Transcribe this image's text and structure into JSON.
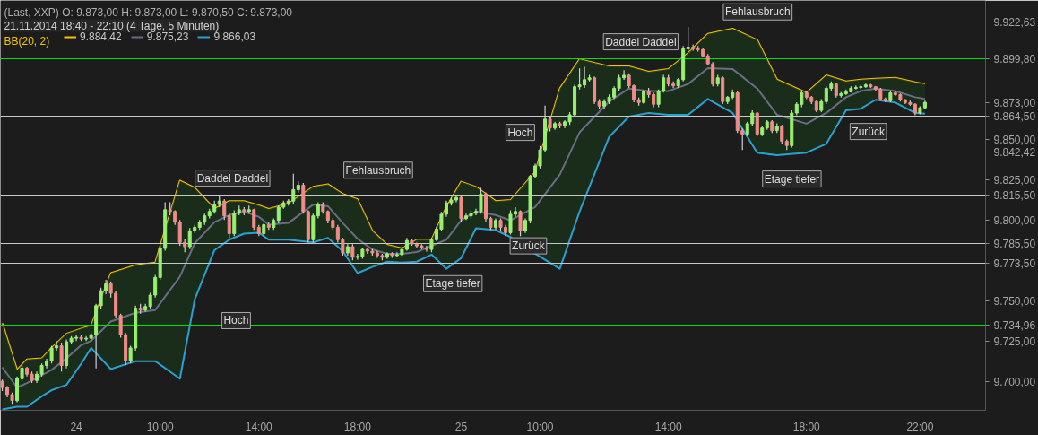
{
  "chart_data": {
    "type": "candlestick",
    "title": "(Last, XXP)  O: 9.873,00  H: 9.873,00  L: 9.870,50  C: 9.873,00",
    "subtitle": "21.11.2014 18:40 - 22:10 (4 Tage, 5 Minuten)",
    "legend_title": "BB(20, 2)",
    "legend": "top left",
    "grid": false,
    "categories": [
      null,
      null,
      null,
      null,
      null,
      null,
      null,
      null,
      null,
      null,
      null,
      null,
      null,
      null,
      null,
      "24",
      null,
      null,
      null,
      null,
      null,
      null,
      null,
      null,
      null,
      null,
      null,
      null,
      null,
      null,
      null,
      null,
      "10:00",
      null,
      null,
      null,
      null,
      null,
      null,
      null,
      null,
      null,
      null,
      null,
      null,
      null,
      null,
      null,
      null,
      null,
      null,
      null,
      "14:00",
      null,
      null,
      null,
      null,
      null,
      null,
      null,
      null,
      null,
      null,
      null,
      null,
      null,
      null,
      null,
      null,
      null,
      null,
      null,
      "18:00",
      null,
      null,
      null,
      null,
      null,
      null,
      null,
      null,
      null,
      null,
      null,
      null,
      null,
      null,
      null,
      null,
      null,
      null,
      null,
      null,
      "25",
      null,
      null,
      null,
      null,
      null,
      null,
      null,
      null,
      null,
      null,
      null,
      null,
      null,
      null,
      null,
      "10:00",
      null,
      null,
      null,
      null,
      null,
      null,
      null,
      null,
      null,
      null,
      null,
      null,
      null,
      null,
      null,
      null,
      null,
      null,
      null,
      null,
      null,
      null,
      null,
      null,
      null,
      "14:00",
      null,
      null,
      null,
      null,
      null,
      null,
      null,
      null,
      null,
      null,
      null,
      null,
      null,
      null,
      null,
      null,
      null,
      null,
      null,
      null,
      null,
      null,
      null,
      null,
      null,
      null,
      null,
      "18:00",
      null,
      null,
      null,
      null,
      null,
      null,
      null,
      null,
      null,
      null,
      null,
      null,
      null,
      null,
      null,
      null,
      null,
      null,
      null,
      null,
      null,
      null,
      "22:00",
      null
    ],
    "ylim": [
      9682,
      9936.2
    ],
    "yticks": [
      {
        "value": 9700,
        "label": "9.700,00"
      },
      {
        "value": 9725,
        "label": "9.725,00"
      },
      {
        "value": 9750,
        "label": "9.750,00"
      },
      {
        "value": 9800,
        "label": "9.800,00"
      },
      {
        "value": 9825,
        "label": "9.825,00"
      },
      {
        "value": 9850,
        "label": "9.850,00"
      },
      {
        "value": 9873,
        "label": "9.873,00"
      }
    ],
    "ohlc": [
      [
        9700,
        9701,
        9694,
        9696.2
      ],
      [
        9696.2,
        9697,
        9690,
        9691.8
      ],
      [
        9691.8,
        9693,
        9686,
        9688
      ],
      [
        9688,
        9703,
        9687,
        9701.6
      ],
      [
        9701.6,
        9710,
        9700,
        9708.2
      ],
      [
        9708.2,
        9709,
        9703,
        9704.4
      ],
      [
        9704.4,
        9706,
        9699,
        9700.5
      ],
      [
        9700.5,
        9706,
        9699,
        9704.4
      ],
      [
        9704.4,
        9711,
        9703,
        9709.8
      ],
      [
        9709.8,
        9714,
        9708,
        9712.6
      ],
      [
        9712.6,
        9722,
        9711,
        9720.7
      ],
      [
        9720.7,
        9725,
        9719,
        9722
      ],
      [
        9722,
        9724,
        9706,
        9709.8
      ],
      [
        9709.8,
        9726,
        9708,
        9724.5
      ],
      [
        9724.5,
        9728,
        9723,
        9726.7
      ],
      [
        9726.7,
        9729,
        9725,
        9727.3
      ],
      [
        9727.3,
        9728.5,
        9725,
        9726.2
      ],
      [
        9726.2,
        9728,
        9725,
        9726.7
      ],
      [
        9726.7,
        9730,
        9725,
        9728.9
      ],
      [
        9728.9,
        9748,
        9708,
        9746.9
      ],
      [
        9746.9,
        9758,
        9745,
        9756.2
      ],
      [
        9756.2,
        9763,
        9754,
        9760.5
      ],
      [
        9760.5,
        9762,
        9752,
        9754.6
      ],
      [
        9754.6,
        9756,
        9739,
        9740.9
      ],
      [
        9740.9,
        9742,
        9727,
        9728.9
      ],
      [
        9728.9,
        9730,
        9710,
        9712.6
      ],
      [
        9712.6,
        9722,
        9711,
        9720.7
      ],
      [
        9720.7,
        9747,
        9719,
        9745.3
      ],
      [
        9745.3,
        9748,
        9742,
        9744.2
      ],
      [
        9744.2,
        9748,
        9743,
        9746.4
      ],
      [
        9746.4,
        9755,
        9745,
        9753.5
      ],
      [
        9753.5,
        9766,
        9752,
        9764.4
      ],
      [
        9764.4,
        9784,
        9763,
        9782.4
      ],
      [
        9782.4,
        9811,
        9781,
        9806.4
      ],
      [
        9806.4,
        9811,
        9803,
        9805.3
      ],
      [
        9805.3,
        9806,
        9797,
        9798.7
      ],
      [
        9798.7,
        9800,
        9784,
        9786.2
      ],
      [
        9786.2,
        9788,
        9780,
        9783.5
      ],
      [
        9783.5,
        9795,
        9782,
        9793.3
      ],
      [
        9793.3,
        9797,
        9792,
        9795.5
      ],
      [
        9795.5,
        9800,
        9794,
        9798.7
      ],
      [
        9798.7,
        9804,
        9797,
        9802.6
      ],
      [
        9802.6,
        9807,
        9801,
        9805.3
      ],
      [
        9805.3,
        9812,
        9804,
        9809.6
      ],
      [
        9809.6,
        9815,
        9808,
        9811.8
      ],
      [
        9811.8,
        9813,
        9800,
        9802.6
      ],
      [
        9802.6,
        9804,
        9789,
        9791.6
      ],
      [
        9791.6,
        9806,
        9790,
        9804.2
      ],
      [
        9804.2,
        9809,
        9803,
        9806.4
      ],
      [
        9806.4,
        9808,
        9803,
        9805.3
      ],
      [
        9805.3,
        9809,
        9804,
        9806.4
      ],
      [
        9806.4,
        9807,
        9794,
        9795.5
      ],
      [
        9795.5,
        9797,
        9790,
        9791.6
      ],
      [
        9791.6,
        9798,
        9790,
        9797.1
      ],
      [
        9797.1,
        9799,
        9794,
        9795.5
      ],
      [
        9795.5,
        9801,
        9794,
        9799.8
      ],
      [
        9799.8,
        9809,
        9798,
        9808
      ],
      [
        9808,
        9812,
        9807,
        9810.7
      ],
      [
        9810.7,
        9813,
        9809,
        9811.8
      ],
      [
        9811.8,
        9828.7,
        9810,
        9818.9
      ],
      [
        9818.9,
        9824,
        9817,
        9821.6
      ],
      [
        9821.6,
        9823,
        9804,
        9805.3
      ],
      [
        9805.3,
        9806,
        9786,
        9787.8
      ],
      [
        9787.8,
        9804,
        9786,
        9802.6
      ],
      [
        9802.6,
        9811,
        9801,
        9809.6
      ],
      [
        9809.6,
        9811,
        9804,
        9805.3
      ],
      [
        9805.3,
        9806,
        9798,
        9799.8
      ],
      [
        9799.8,
        9801,
        9794,
        9795.5
      ],
      [
        9795.5,
        9797,
        9786,
        9787.8
      ],
      [
        9787.8,
        9789,
        9778,
        9779.6
      ],
      [
        9779.6,
        9785,
        9778,
        9783.5
      ],
      [
        9783.5,
        9785,
        9775,
        9776.9
      ],
      [
        9776.9,
        9779,
        9775.5,
        9777.5
      ],
      [
        9777.5,
        9783,
        9776,
        9781.8
      ],
      [
        9781.8,
        9783,
        9779,
        9780.7
      ],
      [
        9780.7,
        9782,
        9778,
        9779.6
      ],
      [
        9779.6,
        9781,
        9776.5,
        9778
      ],
      [
        9778,
        9779,
        9775,
        9776.9
      ],
      [
        9776.9,
        9780,
        9776,
        9779.1
      ],
      [
        9779.1,
        9780,
        9776.5,
        9778
      ],
      [
        9778,
        9780,
        9777,
        9778.5
      ],
      [
        9778.5,
        9783,
        9777.5,
        9781.8
      ],
      [
        9781.8,
        9789,
        9781,
        9787.3
      ],
      [
        9787.3,
        9788,
        9784,
        9785.1
      ],
      [
        9785.1,
        9786,
        9783,
        9784
      ],
      [
        9784,
        9785,
        9782,
        9782.9
      ],
      [
        9782.9,
        9784,
        9780.5,
        9781.8
      ],
      [
        9781.8,
        9789,
        9780,
        9787.8
      ],
      [
        9787.8,
        9796,
        9787,
        9794.4
      ],
      [
        9794.4,
        9805,
        9793,
        9803.6
      ],
      [
        9803.6,
        9812,
        9802,
        9810.7
      ],
      [
        9810.7,
        9814,
        9809,
        9812.4
      ],
      [
        9812.4,
        9815,
        9811,
        9814
      ],
      [
        9814,
        9815,
        9799,
        9800.9
      ],
      [
        9800.9,
        9804,
        9800,
        9802.6
      ],
      [
        9802.6,
        9806,
        9801,
        9804.2
      ],
      [
        9804.2,
        9807,
        9803,
        9805.3
      ],
      [
        9805.3,
        9820,
        9804,
        9816.2
      ],
      [
        9816.2,
        9817,
        9799,
        9800.9
      ],
      [
        9800.9,
        9802,
        9794,
        9795.5
      ],
      [
        9795.5,
        9801,
        9794,
        9799.8
      ],
      [
        9799.8,
        9801,
        9793,
        9795.5
      ],
      [
        9795.5,
        9797,
        9790,
        9792.2
      ],
      [
        9792.2,
        9806,
        9791,
        9803.6
      ],
      [
        9803.6,
        9808,
        9802,
        9805.3
      ],
      [
        9805.3,
        9806,
        9790,
        9793.3
      ],
      [
        9793.3,
        9801,
        9792,
        9799.8
      ],
      [
        9799.8,
        9828,
        9798,
        9827.1
      ],
      [
        9827.1,
        9835,
        9826,
        9833.6
      ],
      [
        9833.6,
        9846,
        9832,
        9843.5
      ],
      [
        9843.5,
        9871,
        9842,
        9862.6
      ],
      [
        9862.6,
        9864,
        9855,
        9857.1
      ],
      [
        9857.1,
        9861,
        9856,
        9859.8
      ],
      [
        9859.8,
        9861,
        9857,
        9858.7
      ],
      [
        9858.7,
        9862,
        9857,
        9860.9
      ],
      [
        9860.9,
        9867,
        9859,
        9865.3
      ],
      [
        9865.3,
        9884,
        9864,
        9882.7
      ],
      [
        9882.7,
        9894,
        9881,
        9883.8
      ],
      [
        9883.8,
        9895,
        9882,
        9887.1
      ],
      [
        9887.1,
        9890,
        9886,
        9888.2
      ],
      [
        9888.2,
        9889,
        9872,
        9873.5
      ],
      [
        9873.5,
        9875,
        9869,
        9870.7
      ],
      [
        9870.7,
        9875,
        9869,
        9873.5
      ],
      [
        9873.5,
        9878,
        9872,
        9876.2
      ],
      [
        9876.2,
        9883,
        9875,
        9881.7
      ],
      [
        9881.7,
        9890,
        9880,
        9888.2
      ],
      [
        9888.2,
        9893,
        9887,
        9889.8
      ],
      [
        9889.8,
        9891,
        9882,
        9883.3
      ],
      [
        9883.3,
        9884,
        9873,
        9874.6
      ],
      [
        9874.6,
        9876,
        9871,
        9872.9
      ],
      [
        9872.9,
        9881,
        9872,
        9880
      ],
      [
        9880,
        9882,
        9876,
        9877.8
      ],
      [
        9877.8,
        9879,
        9870,
        9871.8
      ],
      [
        9871.8,
        9881,
        9870,
        9880
      ],
      [
        9880,
        9890,
        9879,
        9888.2
      ],
      [
        9888.2,
        9890,
        9883,
        9884.4
      ],
      [
        9884.4,
        9886,
        9882,
        9883.3
      ],
      [
        9883.3,
        9888,
        9882,
        9887.1
      ],
      [
        9887.1,
        9908,
        9886,
        9906.2
      ],
      [
        9906.2,
        9919.8,
        9905,
        9907.3
      ],
      [
        9907.3,
        9909,
        9905,
        9906.2
      ],
      [
        9906.2,
        9908,
        9904.5,
        9905.7
      ],
      [
        9905.7,
        9907,
        9901,
        9901.8
      ],
      [
        9901.8,
        9903,
        9896,
        9896.9
      ],
      [
        9896.9,
        9898,
        9883,
        9884.4
      ],
      [
        9884.4,
        9890,
        9883,
        9888.2
      ],
      [
        9888.2,
        9889,
        9872,
        9873.5
      ],
      [
        9873.5,
        9877,
        9872,
        9876.2
      ],
      [
        9876.2,
        9881,
        9875,
        9878.9
      ],
      [
        9878.9,
        9880,
        9854,
        9855.5
      ],
      [
        9855.5,
        9857,
        9843.5,
        9853.3
      ],
      [
        9853.3,
        9861,
        9852,
        9859.8
      ],
      [
        9859.8,
        9868,
        9858,
        9866.4
      ],
      [
        9866.4,
        9867,
        9852,
        9853.3
      ],
      [
        9853.3,
        9858,
        9852,
        9857.1
      ],
      [
        9857.1,
        9862,
        9856,
        9860.9
      ],
      [
        9860.9,
        9862,
        9854,
        9855.5
      ],
      [
        9855.5,
        9860,
        9854,
        9858.2
      ],
      [
        9858.2,
        9859,
        9847,
        9848.9
      ],
      [
        9848.9,
        9850,
        9843.5,
        9846.2
      ],
      [
        9846.2,
        9868,
        9845,
        9866.4
      ],
      [
        9866.4,
        9873,
        9865,
        9871.8
      ],
      [
        9871.8,
        9880,
        9870,
        9878.9
      ],
      [
        9878.9,
        9880,
        9875,
        9876.2
      ],
      [
        9876.2,
        9877,
        9872,
        9873.5
      ],
      [
        9873.5,
        9874,
        9867,
        9868
      ],
      [
        9868,
        9875,
        9867,
        9873.5
      ],
      [
        9873.5,
        9883,
        9872,
        9881.7
      ],
      [
        9881.7,
        9886,
        9880,
        9884.4
      ],
      [
        9884.4,
        9885,
        9876,
        9877.3
      ],
      [
        9877.3,
        9879.5,
        9876,
        9878.4
      ],
      [
        9878.4,
        9881,
        9877.5,
        9879.5
      ],
      [
        9879.5,
        9883,
        9879,
        9881.7
      ],
      [
        9881.7,
        9883.5,
        9881,
        9882.2
      ],
      [
        9882.2,
        9884,
        9881,
        9882.7
      ],
      [
        9882.7,
        9885,
        9882,
        9883.8
      ],
      [
        9883.8,
        9884.5,
        9882,
        9882.7
      ],
      [
        9882.7,
        9883,
        9880,
        9881.1
      ],
      [
        9881.1,
        9882,
        9874,
        9875.1
      ],
      [
        9875.1,
        9876,
        9873,
        9874
      ],
      [
        9874,
        9880,
        9873,
        9878.9
      ],
      [
        9878.9,
        9880,
        9877,
        9877.8
      ],
      [
        9877.8,
        9878.5,
        9873.5,
        9874.6
      ],
      [
        9874.6,
        9875,
        9872,
        9872.9
      ],
      [
        9872.9,
        9874,
        9871,
        9871.8
      ],
      [
        9871.8,
        9872.5,
        9865,
        9866.4
      ],
      [
        9866.4,
        9870.5,
        9865.5,
        9869.6
      ],
      [
        9869.6,
        9874,
        9869,
        9873
      ]
    ],
    "series": [
      {
        "name": "9.884,42",
        "type": "line",
        "color": "#f5c400",
        "values": [
          9736.0,
          null,
          null,
          9707.1,
          null,
          9713.6,
          null,
          null,
          9714.2,
          null,
          9720.7,
          null,
          null,
          9729.5,
          null,
          null,
          9732.7,
          null,
          9734.4,
          null,
          null,
          null,
          9767.1,
          null,
          null,
          null,
          null,
          9772.0,
          null,
          null,
          null,
          9773.6,
          null,
          null,
          null,
          null,
          9824.4,
          null,
          null,
          9820.0,
          null,
          null,
          null,
          9806.9,
          null,
          null,
          9811.8,
          null,
          null,
          9811.8,
          null,
          null,
          9809.1,
          null,
          9806.9,
          null,
          null,
          null,
          9810.2,
          null,
          null,
          null,
          null,
          9820.6,
          null,
          null,
          9822.2,
          null,
          null,
          9816.2,
          null,
          null,
          9812.9,
          null,
          null,
          9793.3,
          null,
          null,
          9784.6,
          null,
          null,
          9782.4,
          null,
          null,
          9787.8,
          null,
          null,
          9787.8,
          null,
          null,
          9808.0,
          null,
          null,
          9823.8,
          null,
          null,
          9820.6,
          null,
          null,
          null,
          9811.8,
          null,
          null,
          9812.4,
          null,
          null,
          null,
          null,
          9829.8,
          null,
          null,
          null,
          null,
          9881.6,
          null,
          null,
          null,
          9899.7,
          null,
          null,
          null,
          null,
          null,
          9895.3,
          null,
          null,
          null,
          9895.3,
          null,
          null,
          null,
          9892.0,
          null,
          null,
          null,
          9893.7,
          null,
          null,
          null,
          9903.5,
          null,
          null,
          null,
          9915.5,
          null,
          null,
          null,
          null,
          9918.7,
          null,
          null,
          null,
          null,
          9911.7,
          null,
          null,
          null,
          9887.1,
          null,
          null,
          null,
          null,
          null,
          9878.9,
          null,
          null,
          null,
          9889.8,
          null,
          null,
          null,
          9886.0,
          null,
          null,
          9887.1,
          null,
          null,
          9887.7,
          null,
          null,
          null,
          9888.2,
          null,
          null,
          null,
          9885.5,
          null,
          9884.4
        ]
      },
      {
        "name": "9.875,23",
        "type": "line",
        "color": "#6b6b85",
        "values": [
          9708.7,
          null,
          null,
          9696.2,
          null,
          9698.9,
          null,
          null,
          9703.8,
          null,
          9707.1,
          null,
          null,
          9714.2,
          null,
          null,
          9722.4,
          null,
          9725.1,
          null,
          null,
          null,
          9737.1,
          null,
          null,
          null,
          null,
          9742.5,
          null,
          null,
          null,
          9744.2,
          null,
          null,
          null,
          null,
          9764.9,
          null,
          null,
          9785.6,
          null,
          null,
          null,
          9798.7,
          null,
          null,
          9803.1,
          null,
          null,
          9805.3,
          null,
          null,
          9802.0,
          null,
          9797.1,
          null,
          null,
          null,
          9798.2,
          null,
          null,
          null,
          null,
          9809.6,
          null,
          null,
          9808.6,
          null,
          null,
          9798.2,
          null,
          null,
          9788.4,
          null,
          null,
          9781.8,
          null,
          null,
          9779.1,
          null,
          null,
          9779.1,
          null,
          null,
          9780.2,
          null,
          null,
          9784.0,
          null,
          null,
          9787.8,
          null,
          null,
          9799.8,
          null,
          null,
          9805.3,
          null,
          null,
          null,
          9803.1,
          null,
          null,
          9799.8,
          null,
          null,
          null,
          null,
          9808.0,
          null,
          null,
          null,
          null,
          9828.2,
          null,
          null,
          null,
          9854.4,
          null,
          null,
          null,
          null,
          null,
          9873.5,
          null,
          null,
          null,
          9881.6,
          null,
          null,
          null,
          9880.0,
          null,
          null,
          null,
          9880.0,
          null,
          null,
          null,
          9884.4,
          null,
          null,
          null,
          9894.2,
          null,
          null,
          null,
          null,
          9893.7,
          null,
          null,
          null,
          null,
          9881.6,
          null,
          null,
          null,
          9865.3,
          null,
          null,
          null,
          null,
          null,
          9859.8,
          null,
          null,
          null,
          9866.4,
          null,
          null,
          null,
          9876.2,
          null,
          null,
          9880.0,
          null,
          null,
          9881.6,
          null,
          null,
          null,
          9880.0,
          null,
          null,
          null,
          9876.2,
          null,
          9875.2
        ],
        "lower": [
          9682.5,
          null,
          null,
          9684.2,
          null,
          9684.2,
          null,
          null,
          9690.7,
          null,
          9694.5,
          null,
          null,
          9697.8,
          null,
          null,
          9710.9,
          null,
          9720.7,
          null,
          null,
          null,
          9707.6,
          null,
          null,
          null,
          null,
          9712.5,
          null,
          null,
          null,
          9712.5,
          null,
          null,
          null,
          null,
          9701.6,
          null,
          null,
          9750.7,
          null,
          null,
          null,
          9781.3,
          null,
          null,
          9787.8,
          null,
          null,
          9791.6,
          null,
          null,
          9792.2,
          null,
          9787.8,
          null,
          null,
          null,
          9787.8,
          null,
          null,
          null,
          null,
          9786.2,
          null,
          null,
          9788.9,
          null,
          null,
          9780.7,
          null,
          null,
          9767.1,
          null,
          null,
          9770.9,
          null,
          null,
          9774.2,
          null,
          null,
          9773.6,
          null,
          null,
          9774.2,
          null,
          null,
          9778.6,
          null,
          null,
          9769.8,
          null,
          null,
          9776.4,
          null,
          null,
          9794.9,
          null,
          null,
          null,
          9793.8,
          null,
          null,
          9789.5,
          null,
          null,
          null,
          null,
          9779.1,
          null,
          null,
          null,
          null,
          9769.8,
          null,
          null,
          null,
          9805.3,
          null,
          null,
          null,
          null,
          null,
          9851.6,
          null,
          null,
          null,
          9864.2,
          null,
          null,
          null,
          9866.4,
          null,
          null,
          null,
          9865.3,
          null,
          null,
          null,
          9865.3,
          null,
          null,
          null,
          9875.1,
          null,
          null,
          null,
          null,
          9866.4,
          null,
          null,
          null,
          null,
          9841.8,
          null,
          null,
          null,
          9840.2,
          null,
          null,
          null,
          null,
          null,
          9841.8,
          null,
          null,
          null,
          9847.3,
          null,
          null,
          null,
          9868.0,
          null,
          null,
          9869.1,
          null,
          null,
          9874.6,
          null,
          null,
          null,
          9872.9,
          null,
          null,
          null,
          9866.4,
          null,
          9866.0
        ],
        "upper": [
          9736.0,
          null,
          null,
          9707.1,
          null,
          9713.6,
          null,
          null,
          9714.2,
          null,
          9720.7,
          null,
          null,
          9729.5,
          null,
          null,
          9732.7,
          null,
          9734.4,
          null,
          null,
          null,
          9767.1,
          null,
          null,
          null,
          null,
          9772.0,
          null,
          null,
          null,
          9773.6,
          null,
          null,
          null,
          null,
          9824.4,
          null,
          null,
          9820.0,
          null,
          null,
          null,
          9806.9,
          null,
          null,
          9811.8,
          null,
          null,
          9811.8,
          null,
          null,
          9809.1,
          null,
          9806.9,
          null,
          null,
          null,
          9810.2,
          null,
          null,
          null,
          null,
          9820.6,
          null,
          null,
          9822.2,
          null,
          null,
          9816.2,
          null,
          null,
          9812.9,
          null,
          null,
          9793.3,
          null,
          null,
          9784.6,
          null,
          null,
          9782.4,
          null,
          null,
          9787.8,
          null,
          null,
          9787.8,
          null,
          null,
          9808.0,
          null,
          null,
          9823.8,
          null,
          null,
          9820.6,
          null,
          null,
          null,
          9811.8,
          null,
          null,
          9812.4,
          null,
          null,
          null,
          null,
          9829.8,
          null,
          null,
          null,
          null,
          9881.6,
          null,
          null,
          null,
          9899.7,
          null,
          null,
          null,
          null,
          null,
          9895.3,
          null,
          null,
          null,
          9895.3,
          null,
          null,
          null,
          9892.0,
          null,
          null,
          null,
          9893.7,
          null,
          null,
          null,
          9903.5,
          null,
          null,
          null,
          9915.5,
          null,
          null,
          null,
          null,
          9918.7,
          null,
          null,
          null,
          null,
          9911.7,
          null,
          null,
          null,
          9887.1,
          null,
          null,
          null,
          null,
          null,
          9878.9,
          null,
          null,
          null,
          9889.8,
          null,
          null,
          null,
          9886.0,
          null,
          null,
          9887.1,
          null,
          null,
          9887.7,
          null,
          null,
          null,
          9888.2,
          null,
          null,
          null,
          9885.5,
          null,
          9884.4
        ]
      },
      {
        "name": "9.866,03",
        "type": "line",
        "color": "#2aa0d0",
        "values": [
          9682.5,
          null,
          null,
          9684.2,
          null,
          9684.2,
          null,
          null,
          9690.7,
          null,
          9694.5,
          null,
          null,
          9697.8,
          null,
          null,
          9710.9,
          null,
          9720.7,
          null,
          null,
          null,
          9707.6,
          null,
          null,
          null,
          null,
          9712.5,
          null,
          null,
          null,
          9712.5,
          null,
          null,
          null,
          null,
          9701.6,
          null,
          null,
          9750.7,
          null,
          null,
          null,
          9781.3,
          null,
          null,
          9787.8,
          null,
          null,
          9791.6,
          null,
          null,
          9792.2,
          null,
          9787.8,
          null,
          null,
          null,
          9787.8,
          null,
          null,
          null,
          null,
          9786.2,
          null,
          null,
          9788.9,
          null,
          null,
          9780.7,
          null,
          null,
          9767.1,
          null,
          null,
          9770.9,
          null,
          null,
          9774.2,
          null,
          null,
          9773.6,
          null,
          null,
          9774.2,
          null,
          null,
          9778.6,
          null,
          null,
          9769.8,
          null,
          null,
          9776.4,
          null,
          null,
          9794.9,
          null,
          null,
          null,
          9793.8,
          null,
          null,
          9789.5,
          null,
          null,
          null,
          null,
          9779.1,
          null,
          null,
          null,
          null,
          9769.8,
          null,
          null,
          null,
          9805.3,
          null,
          null,
          null,
          null,
          null,
          9851.6,
          null,
          null,
          null,
          9864.2,
          null,
          null,
          null,
          9866.4,
          null,
          null,
          null,
          9865.3,
          null,
          null,
          null,
          9865.3,
          null,
          null,
          null,
          9875.1,
          null,
          null,
          null,
          null,
          9866.4,
          null,
          null,
          null,
          null,
          9841.8,
          null,
          null,
          null,
          9840.2,
          null,
          null,
          null,
          null,
          null,
          9841.8,
          null,
          null,
          null,
          9847.3,
          null,
          null,
          null,
          9868.0,
          null,
          null,
          9869.1,
          null,
          null,
          9874.6,
          null,
          null,
          null,
          9872.9,
          null,
          null,
          null,
          9866.4,
          null,
          9866.0
        ]
      }
    ],
    "ref_lines": [
      {
        "axis": "y",
        "value": 9922.63,
        "label": "9.922,63",
        "color": "#00e000"
      },
      {
        "axis": "y",
        "value": 9899.8,
        "label": "9.899,80",
        "color": "#00e000"
      },
      {
        "axis": "y",
        "value": 9864.5,
        "label": "9.864,50",
        "color": "#c8c8c8"
      },
      {
        "axis": "y",
        "value": 9842.42,
        "label": "9.842,42",
        "color": "#ff0000"
      },
      {
        "axis": "y",
        "value": 9815.5,
        "label": "9.815,50",
        "color": "#c8c8c8"
      },
      {
        "axis": "y",
        "value": 9785.5,
        "label": "9.785,50",
        "color": "#c8c8c8"
      },
      {
        "axis": "y",
        "value": 9773.5,
        "label": "9.773,50",
        "color": "#c8c8c8"
      },
      {
        "axis": "y",
        "value": 9734.96,
        "label": "9.734,96",
        "color": "#00e000"
      }
    ],
    "annotations": [
      "Daddel Daddel",
      "Hoch",
      "Fehlausbruch",
      "Etage tiefer",
      "Zurück",
      "Hoch",
      "Daddel Daddel",
      "Fehlausbruch",
      "Etage tiefer",
      "Zurück"
    ]
  }
}
